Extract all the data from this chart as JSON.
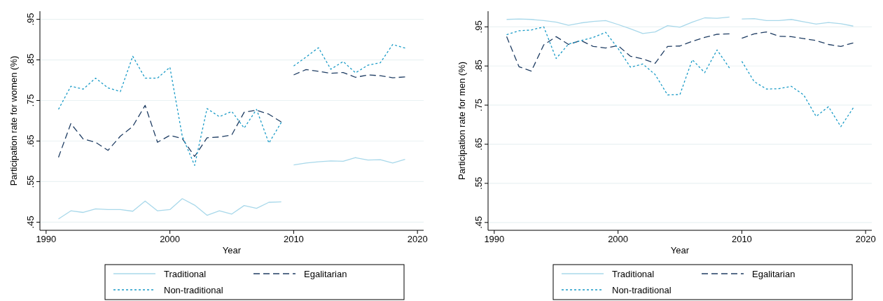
{
  "chart_data": [
    {
      "type": "line",
      "xlabel": "Year",
      "ylabel": "Participation rate for women (%)",
      "xlim": [
        1989.5,
        2020.5
      ],
      "xticks": [
        1990,
        2000,
        2010,
        2020
      ],
      "ylim": [
        0.43,
        0.97
      ],
      "yticks": [
        {
          "value": 0.45,
          "label": ".45"
        },
        {
          "value": 0.55,
          "label": ".55"
        },
        {
          "value": 0.65,
          "label": ".65"
        },
        {
          "value": 0.75,
          "label": ".75"
        },
        {
          "value": 0.85,
          "label": ".85"
        },
        {
          "value": 0.95,
          "label": ".95"
        }
      ],
      "grid": "y",
      "legend": "bottom",
      "series": [
        {
          "name": "Traditional",
          "color": "#a8d8ea",
          "line_style": "solid",
          "x": [
            1991,
            1992,
            1993,
            1994,
            1995,
            1996,
            1997,
            1998,
            1999,
            2000,
            2001,
            2002,
            2003,
            2004,
            2005,
            2006,
            2007,
            2008,
            2009
          ],
          "values": [
            0.458,
            0.478,
            0.474,
            0.483,
            0.481,
            0.481,
            0.477,
            0.502,
            0.478,
            0.481,
            0.508,
            0.492,
            0.467,
            0.478,
            0.47,
            0.491,
            0.484,
            0.499,
            0.5
          ]
        },
        {
          "name": "Egalitarian",
          "color": "#1f3d63",
          "line_style": "dashed",
          "x": [
            1991,
            1992,
            1993,
            1994,
            1995,
            1996,
            1997,
            1998,
            1999,
            2000,
            2001,
            2002,
            2003,
            2004,
            2005,
            2006,
            2007,
            2008,
            2009
          ],
          "values": [
            0.61,
            0.693,
            0.655,
            0.647,
            0.627,
            0.662,
            0.686,
            0.738,
            0.647,
            0.664,
            0.656,
            0.612,
            0.658,
            0.66,
            0.665,
            0.721,
            0.726,
            0.716,
            0.697
          ]
        },
        {
          "name": "Non-traditional",
          "color": "#1a9bc7",
          "line_style": "dotted",
          "x": [
            1991,
            1992,
            1993,
            1994,
            1995,
            1996,
            1997,
            1998,
            1999,
            2000,
            2001,
            2002,
            2003,
            2004,
            2005,
            2006,
            2007,
            2008,
            2009
          ],
          "values": [
            0.728,
            0.785,
            0.778,
            0.805,
            0.781,
            0.772,
            0.859,
            0.805,
            0.805,
            0.832,
            0.662,
            0.59,
            0.73,
            0.71,
            0.723,
            0.682,
            0.728,
            0.645,
            0.696
          ]
        },
        {
          "color": "#a8d8ea",
          "line_style": "solid",
          "x": [
            2010,
            2011,
            2012,
            2013,
            2014,
            2015,
            2016,
            2017,
            2018,
            2019
          ],
          "values": [
            0.591,
            0.596,
            0.599,
            0.601,
            0.6,
            0.609,
            0.603,
            0.604,
            0.596,
            0.605
          ]
        },
        {
          "color": "#1f3d63",
          "line_style": "dashed",
          "x": [
            2010,
            2011,
            2012,
            2013,
            2014,
            2015,
            2016,
            2017,
            2018,
            2019
          ],
          "values": [
            0.813,
            0.826,
            0.822,
            0.817,
            0.819,
            0.807,
            0.813,
            0.811,
            0.806,
            0.808
          ]
        },
        {
          "color": "#1a9bc7",
          "line_style": "dotted",
          "x": [
            2010,
            2011,
            2012,
            2013,
            2014,
            2015,
            2016,
            2017,
            2018,
            2019
          ],
          "values": [
            0.835,
            0.857,
            0.88,
            0.827,
            0.846,
            0.818,
            0.837,
            0.843,
            0.888,
            0.879
          ]
        }
      ]
    },
    {
      "type": "line",
      "xlabel": "Year",
      "ylabel": "Participation rate for men (%)",
      "xlim": [
        1989.5,
        2020.5
      ],
      "xticks": [
        1990,
        2000,
        2010,
        2020
      ],
      "ylim": [
        0.43,
        0.99
      ],
      "yticks": [
        {
          "value": 0.45,
          "label": ".45"
        },
        {
          "value": 0.55,
          "label": ".55"
        },
        {
          "value": 0.65,
          "label": ".65"
        },
        {
          "value": 0.75,
          "label": ".75"
        },
        {
          "value": 0.85,
          "label": ".85"
        },
        {
          "value": 0.95,
          "label": ".95"
        }
      ],
      "grid": "y",
      "legend": "bottom",
      "series": [
        {
          "name": "Traditional",
          "color": "#a8d8ea",
          "line_style": "solid",
          "x": [
            1991,
            1992,
            1993,
            1994,
            1995,
            1996,
            1997,
            1998,
            1999,
            2000,
            2001,
            2002,
            2003,
            2004,
            2005,
            2006,
            2007,
            2008,
            2009
          ],
          "values": [
            0.969,
            0.97,
            0.969,
            0.966,
            0.962,
            0.954,
            0.96,
            0.964,
            0.966,
            0.956,
            0.945,
            0.933,
            0.937,
            0.953,
            0.949,
            0.962,
            0.973,
            0.972,
            0.975
          ]
        },
        {
          "name": "Egalitarian",
          "color": "#1f3d63",
          "line_style": "dashed",
          "x": [
            1991,
            1992,
            1993,
            1994,
            1995,
            1996,
            1997,
            1998,
            1999,
            2000,
            2001,
            2002,
            2003,
            2004,
            2005,
            2006,
            2007,
            2008,
            2009
          ],
          "values": [
            0.925,
            0.848,
            0.837,
            0.904,
            0.925,
            0.905,
            0.915,
            0.9,
            0.896,
            0.902,
            0.875,
            0.868,
            0.857,
            0.9,
            0.901,
            0.913,
            0.923,
            0.931,
            0.932
          ]
        },
        {
          "name": "Non-traditional",
          "color": "#1a9bc7",
          "line_style": "dotted",
          "x": [
            1991,
            1992,
            1993,
            1994,
            1995,
            1996,
            1997,
            1998,
            1999,
            2000,
            2001,
            2002,
            2003,
            2004,
            2005,
            2006,
            2007,
            2008,
            2009
          ],
          "values": [
            0.93,
            0.94,
            0.942,
            0.95,
            0.869,
            0.906,
            0.915,
            0.923,
            0.936,
            0.895,
            0.847,
            0.855,
            0.828,
            0.776,
            0.777,
            0.866,
            0.833,
            0.891,
            0.845
          ]
        },
        {
          "color": "#a8d8ea",
          "line_style": "solid",
          "x": [
            2010,
            2011,
            2012,
            2013,
            2014,
            2015,
            2016,
            2017,
            2018,
            2019
          ],
          "values": [
            0.97,
            0.971,
            0.966,
            0.966,
            0.969,
            0.963,
            0.957,
            0.961,
            0.958,
            0.952
          ]
        },
        {
          "color": "#1f3d63",
          "line_style": "dashed",
          "x": [
            2010,
            2011,
            2012,
            2013,
            2014,
            2015,
            2016,
            2017,
            2018,
            2019
          ],
          "values": [
            0.921,
            0.932,
            0.937,
            0.926,
            0.925,
            0.92,
            0.915,
            0.905,
            0.9,
            0.909
          ]
        },
        {
          "color": "#1a9bc7",
          "line_style": "dotted",
          "x": [
            2010,
            2011,
            2012,
            2013,
            2014,
            2015,
            2016,
            2017,
            2018,
            2019
          ],
          "values": [
            0.862,
            0.81,
            0.791,
            0.792,
            0.798,
            0.776,
            0.721,
            0.746,
            0.695,
            0.743
          ]
        }
      ]
    }
  ]
}
